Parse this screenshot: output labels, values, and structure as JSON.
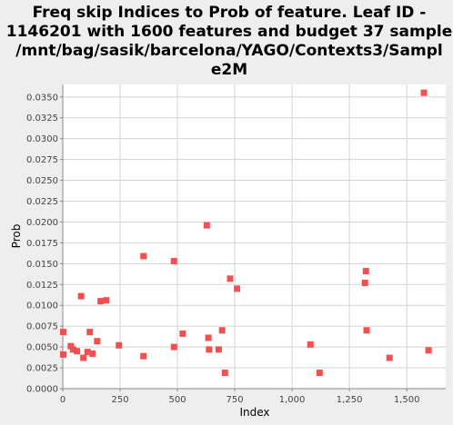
{
  "chart_data": {
    "type": "scatter",
    "title_lines": [
      "Freq skip Indices to Prob of feature. Leaf ID -",
      "1146201 with 1600 features and budget 37 sample",
      "/mnt/bag/sasik/barcelona/YAGO/Contexts3/Sampl",
      "e2M"
    ],
    "xlabel": "Index",
    "ylabel": "Prob",
    "xlim": [
      0,
      1670
    ],
    "ylim": [
      0,
      0.0365
    ],
    "x_ticks": [
      0,
      250,
      500,
      750,
      1000,
      1250,
      1500
    ],
    "x_tick_labels": [
      "0",
      "250",
      "500",
      "750",
      "1,000",
      "1,250",
      "1,500"
    ],
    "y_ticks": [
      0,
      0.0025,
      0.005,
      0.0075,
      0.01,
      0.0125,
      0.015,
      0.0175,
      0.02,
      0.0225,
      0.025,
      0.0275,
      0.03,
      0.0325,
      0.035
    ],
    "y_tick_labels": [
      "0.0000",
      "0.0025",
      "0.0050",
      "0.0075",
      "0.0100",
      "0.0125",
      "0.0150",
      "0.0175",
      "0.0200",
      "0.0225",
      "0.0250",
      "0.0275",
      "0.0300",
      "0.0325",
      "0.0350"
    ],
    "grid": true,
    "colors": {
      "background": "#eeeeee",
      "plot_background": "#ffffff",
      "grid": "#d3d3d3",
      "marker": "#f05050",
      "axis": "#888888"
    },
    "points": [
      {
        "x": 2,
        "y": 0.0068
      },
      {
        "x": 2,
        "y": 0.0041
      },
      {
        "x": 35,
        "y": 0.0051
      },
      {
        "x": 45,
        "y": 0.0047
      },
      {
        "x": 62,
        "y": 0.0045
      },
      {
        "x": 80,
        "y": 0.0111
      },
      {
        "x": 90,
        "y": 0.0037
      },
      {
        "x": 108,
        "y": 0.0044
      },
      {
        "x": 118,
        "y": 0.0068
      },
      {
        "x": 130,
        "y": 0.0042
      },
      {
        "x": 150,
        "y": 0.0057
      },
      {
        "x": 165,
        "y": 0.0105
      },
      {
        "x": 190,
        "y": 0.0106
      },
      {
        "x": 245,
        "y": 0.0052
      },
      {
        "x": 352,
        "y": 0.0159
      },
      {
        "x": 352,
        "y": 0.0039
      },
      {
        "x": 485,
        "y": 0.0153
      },
      {
        "x": 485,
        "y": 0.005
      },
      {
        "x": 523,
        "y": 0.0066
      },
      {
        "x": 628,
        "y": 0.0196
      },
      {
        "x": 635,
        "y": 0.0061
      },
      {
        "x": 638,
        "y": 0.0047
      },
      {
        "x": 680,
        "y": 0.0047
      },
      {
        "x": 695,
        "y": 0.007
      },
      {
        "x": 707,
        "y": 0.0019
      },
      {
        "x": 730,
        "y": 0.0132
      },
      {
        "x": 760,
        "y": 0.012
      },
      {
        "x": 1080,
        "y": 0.0053
      },
      {
        "x": 1120,
        "y": 0.0019
      },
      {
        "x": 1318,
        "y": 0.0127
      },
      {
        "x": 1322,
        "y": 0.0141
      },
      {
        "x": 1325,
        "y": 0.007
      },
      {
        "x": 1425,
        "y": 0.0037
      },
      {
        "x": 1575,
        "y": 0.0355
      },
      {
        "x": 1595,
        "y": 0.0046
      }
    ]
  }
}
